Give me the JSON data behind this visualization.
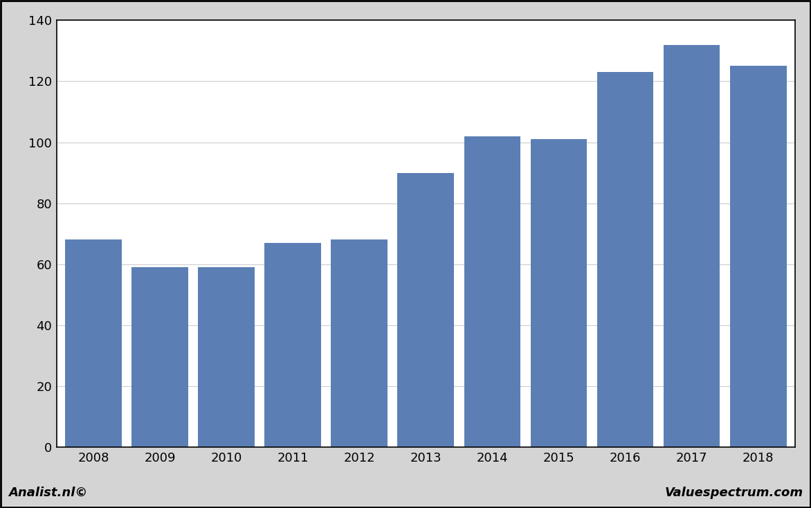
{
  "categories": [
    "2008",
    "2009",
    "2010",
    "2011",
    "2012",
    "2013",
    "2014",
    "2015",
    "2016",
    "2017",
    "2018"
  ],
  "values": [
    68,
    59,
    59,
    67,
    68,
    90,
    102,
    101,
    123,
    132,
    125
  ],
  "bar_color": "#5b7fb5",
  "background_color": "#d4d4d4",
  "plot_background_color": "#ffffff",
  "ylim": [
    0,
    140
  ],
  "yticks": [
    0,
    20,
    40,
    60,
    80,
    100,
    120,
    140
  ],
  "grid_color": "#cccccc",
  "footer_left": "Analist.nl©",
  "footer_right": "Valuespectrum.com",
  "border_color": "#000000"
}
